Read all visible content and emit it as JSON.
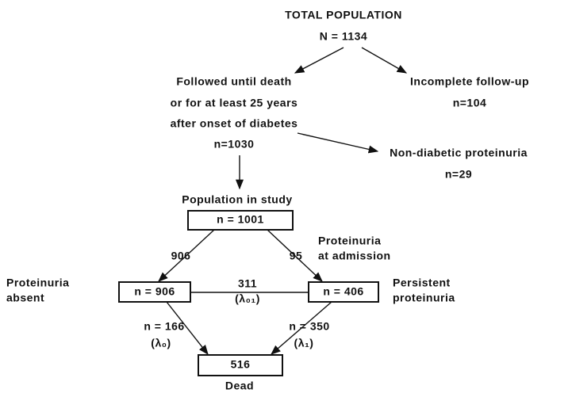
{
  "title": "TOTAL POPULATION",
  "total": "N = 1134",
  "followed": {
    "lines": [
      "Followed until death",
      "or for at least 25 years",
      "after onset of diabetes"
    ],
    "n": "n=1030"
  },
  "incomplete": {
    "label": "Incomplete follow-up",
    "n": "n=104"
  },
  "non_diabetic": {
    "label": "Non-diabetic proteinuria",
    "n": "n=29"
  },
  "study": {
    "label": "Population in study",
    "n": "n = 1001"
  },
  "edges": {
    "to_absent": "906",
    "to_persistent": "95",
    "transition": "311",
    "transition_rate": "(λ₀₁)",
    "absent_dead": "n = 166",
    "absent_dead_rate": "(λ₀)",
    "persistent_dead": "n = 350",
    "persistent_dead_rate": "(λ₁)"
  },
  "admission_note": [
    "Proteinuria",
    "at admission"
  ],
  "absent": {
    "label": [
      "Proteinuria",
      "absent"
    ],
    "n": "n = 906"
  },
  "persistent": {
    "label": [
      "Persistent",
      "proteinuria"
    ],
    "n": "n = 406"
  },
  "dead": {
    "n": "516",
    "label": "Dead"
  }
}
